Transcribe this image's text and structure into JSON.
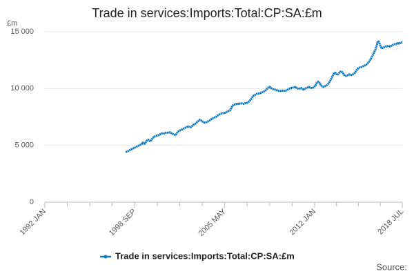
{
  "chart_data": {
    "type": "line",
    "title": "Trade in services:Imports:Total:CP:SA:£m",
    "y_unit": "£m",
    "source": "Source:",
    "xlim": [
      "1992 JAN",
      "2018 JUL"
    ],
    "xticks": [
      "1992 JAN",
      "1998 SEP",
      "2005 MAY",
      "2012 JAN",
      "2018 JUL"
    ],
    "ylim": [
      0,
      15000
    ],
    "yticks": [
      0,
      {
        "value": 5000,
        "label": "5 000"
      },
      {
        "value": 10000,
        "label": "10 000"
      },
      {
        "value": 15000,
        "label": "15 000"
      }
    ],
    "grid": true,
    "legend": "bottom",
    "x": [
      "1998 JAN",
      "1998 FEB",
      "1998 MAR",
      "1998 APR",
      "1998 MAY",
      "1998 JUN",
      "1998 JUL",
      "1998 AUG",
      "1998 SEP",
      "1998 OCT",
      "1998 NOV",
      "1998 DEC",
      "1999 JAN",
      "1999 FEB",
      "1999 MAR",
      "1999 APR",
      "1999 MAY",
      "1999 JUN",
      "1999 JUL",
      "1999 AUG",
      "1999 SEP",
      "1999 OCT",
      "1999 NOV",
      "1999 DEC",
      "2000 JAN",
      "2000 FEB",
      "2000 MAR",
      "2000 APR",
      "2000 MAY",
      "2000 JUN",
      "2000 JUL",
      "2000 AUG",
      "2000 SEP",
      "2000 OCT",
      "2000 NOV",
      "2000 DEC",
      "2001 JAN",
      "2001 FEB",
      "2001 MAR",
      "2001 APR",
      "2001 MAY",
      "2001 JUN",
      "2001 JUL",
      "2001 AUG",
      "2001 SEP",
      "2001 OCT",
      "2001 NOV",
      "2001 DEC",
      "2002 JAN",
      "2002 FEB",
      "2002 MAR",
      "2002 APR",
      "2002 MAY",
      "2002 JUN",
      "2002 JUL",
      "2002 AUG",
      "2002 SEP",
      "2002 OCT",
      "2002 NOV",
      "2002 DEC",
      "2003 JAN",
      "2003 FEB",
      "2003 MAR",
      "2003 APR",
      "2003 MAY",
      "2003 JUN",
      "2003 JUL",
      "2003 AUG",
      "2003 SEP",
      "2003 OCT",
      "2003 NOV",
      "2003 DEC",
      "2004 JAN",
      "2004 FEB",
      "2004 MAR",
      "2004 APR",
      "2004 MAY",
      "2004 JUN",
      "2004 JUL",
      "2004 AUG",
      "2004 SEP",
      "2004 OCT",
      "2004 NOV",
      "2004 DEC",
      "2005 JAN",
      "2005 FEB",
      "2005 MAR",
      "2005 APR",
      "2005 MAY",
      "2005 JUN",
      "2005 JUL",
      "2005 AUG",
      "2005 SEP",
      "2005 OCT",
      "2005 NOV",
      "2005 DEC",
      "2006 JAN",
      "2006 FEB",
      "2006 MAR",
      "2006 APR",
      "2006 MAY",
      "2006 JUN",
      "2006 JUL",
      "2006 AUG",
      "2006 SEP",
      "2006 OCT",
      "2006 NOV",
      "2006 DEC",
      "2007 JAN",
      "2007 FEB",
      "2007 MAR",
      "2007 APR",
      "2007 MAY",
      "2007 JUN",
      "2007 JUL",
      "2007 AUG",
      "2007 SEP",
      "2007 OCT",
      "2007 NOV",
      "2007 DEC",
      "2008 JAN",
      "2008 FEB",
      "2008 MAR",
      "2008 APR",
      "2008 MAY",
      "2008 JUN",
      "2008 JUL",
      "2008 AUG",
      "2008 SEP",
      "2008 OCT",
      "2008 NOV",
      "2008 DEC",
      "2009 JAN",
      "2009 FEB",
      "2009 MAR",
      "2009 APR",
      "2009 MAY",
      "2009 JUN",
      "2009 JUL",
      "2009 AUG",
      "2009 SEP",
      "2009 OCT",
      "2009 NOV",
      "2009 DEC",
      "2010 JAN",
      "2010 FEB",
      "2010 MAR",
      "2010 APR",
      "2010 MAY",
      "2010 JUN",
      "2010 JUL",
      "2010 AUG",
      "2010 SEP",
      "2010 OCT",
      "2010 NOV",
      "2010 DEC",
      "2011 JAN",
      "2011 FEB",
      "2011 MAR",
      "2011 APR",
      "2011 MAY",
      "2011 JUN",
      "2011 JUL",
      "2011 AUG",
      "2011 SEP",
      "2011 OCT",
      "2011 NOV",
      "2011 DEC",
      "2012 JAN",
      "2012 FEB",
      "2012 MAR",
      "2012 APR",
      "2012 MAY",
      "2012 JUN",
      "2012 JUL",
      "2012 AUG",
      "2012 SEP",
      "2012 OCT",
      "2012 NOV",
      "2012 DEC",
      "2013 JAN",
      "2013 FEB",
      "2013 MAR",
      "2013 APR",
      "2013 MAY",
      "2013 JUN",
      "2013 JUL",
      "2013 AUG",
      "2013 SEP",
      "2013 OCT",
      "2013 NOV",
      "2013 DEC",
      "2014 JAN",
      "2014 FEB",
      "2014 MAR",
      "2014 APR",
      "2014 MAY",
      "2014 JUN",
      "2014 JUL",
      "2014 AUG",
      "2014 SEP",
      "2014 OCT",
      "2014 NOV",
      "2014 DEC",
      "2015 JAN",
      "2015 FEB",
      "2015 MAR",
      "2015 APR",
      "2015 MAY",
      "2015 JUN",
      "2015 JUL",
      "2015 AUG",
      "2015 SEP",
      "2015 OCT",
      "2015 NOV",
      "2015 DEC",
      "2016 JAN",
      "2016 FEB",
      "2016 MAR",
      "2016 APR",
      "2016 MAY",
      "2016 JUN",
      "2016 JUL",
      "2016 AUG",
      "2016 SEP",
      "2016 OCT",
      "2016 NOV",
      "2016 DEC",
      "2017 JAN",
      "2017 FEB",
      "2017 MAR",
      "2017 APR",
      "2017 MAY",
      "2017 JUN",
      "2017 JUL",
      "2017 AUG",
      "2017 SEP",
      "2017 OCT",
      "2017 NOV",
      "2017 DEC",
      "2018 JAN",
      "2018 FEB",
      "2018 MAR",
      "2018 APR",
      "2018 MAY",
      "2018 JUN",
      "2018 JUL"
    ],
    "series": [
      {
        "name": "Trade in services:Imports:Total:CP:SA:£m",
        "color": "#0b78bf",
        "values": [
          4400,
          4450,
          4500,
          4550,
          4600,
          4650,
          4700,
          4750,
          4800,
          4850,
          4900,
          4950,
          5000,
          5050,
          5100,
          5250,
          5150,
          5150,
          5300,
          5450,
          5500,
          5400,
          5350,
          5500,
          5650,
          5750,
          5800,
          5850,
          5850,
          5900,
          5950,
          6000,
          6050,
          6050,
          6050,
          6100,
          6100,
          6100,
          6150,
          6150,
          6100,
          6050,
          6000,
          5950,
          5900,
          6000,
          6150,
          6250,
          6300,
          6350,
          6400,
          6450,
          6500,
          6550,
          6600,
          6650,
          6650,
          6600,
          6600,
          6700,
          6800,
          6850,
          6900,
          7000,
          7100,
          7200,
          7250,
          7200,
          7100,
          7050,
          7000,
          7000,
          7050,
          7100,
          7150,
          7200,
          7300,
          7350,
          7400,
          7450,
          7500,
          7550,
          7650,
          7700,
          7750,
          7800,
          7800,
          7850,
          7850,
          7900,
          7950,
          8000,
          8050,
          8100,
          8300,
          8500,
          8600,
          8600,
          8650,
          8600,
          8650,
          8650,
          8700,
          8700,
          8650,
          8650,
          8700,
          8700,
          8750,
          8800,
          8900,
          9000,
          9150,
          9300,
          9400,
          9450,
          9500,
          9550,
          9550,
          9600,
          9600,
          9650,
          9700,
          9750,
          9800,
          9900,
          10000,
          10100,
          10150,
          10050,
          10000,
          9950,
          9900,
          9900,
          9850,
          9850,
          9800,
          9800,
          9800,
          9800,
          9850,
          9800,
          9800,
          9850,
          9900,
          9950,
          10000,
          10050,
          10050,
          10100,
          10100,
          10150,
          10050,
          10000,
          9950,
          10000,
          10050,
          10000,
          9900,
          9950,
          10000,
          10100,
          10100,
          10150,
          10100,
          10050,
          10050,
          10100,
          10200,
          10300,
          10500,
          10600,
          10550,
          10400,
          10250,
          10200,
          10150,
          10200,
          10250,
          10300,
          10400,
          10550,
          10700,
          10900,
          11100,
          11300,
          11400,
          11350,
          11200,
          11250,
          11400,
          11500,
          11500,
          11400,
          11250,
          11100,
          11100,
          11150,
          11200,
          11250,
          11200,
          11200,
          11250,
          11300,
          11400,
          11550,
          11700,
          11800,
          11850,
          11850,
          11900,
          11950,
          12000,
          12050,
          12100,
          12200,
          12300,
          12450,
          12600,
          12800,
          13000,
          13200,
          13400,
          13700,
          14100,
          14150,
          13900,
          13650,
          13550,
          13600,
          13650,
          13700,
          13700,
          13750,
          13750,
          13700,
          13750,
          13800,
          13850,
          13900,
          13900,
          13950,
          14000,
          13950,
          14000,
          14050,
          14050
        ]
      }
    ]
  }
}
